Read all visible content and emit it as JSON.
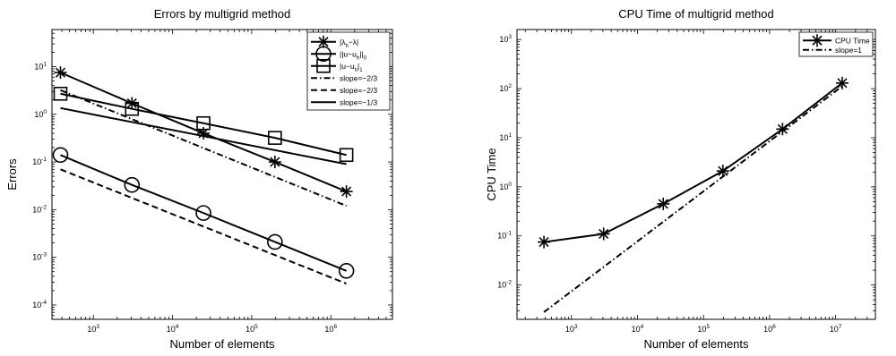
{
  "chart_data": [
    {
      "type": "line",
      "title": "Errors by multigrid method",
      "xlabel": "Number of elements",
      "ylabel": "Errors",
      "xscale": "log",
      "yscale": "log",
      "xlim": [
        300,
        6000000
      ],
      "ylim": [
        5e-05,
        60
      ],
      "xticks": [
        1000,
        10000,
        100000,
        1000000
      ],
      "yticks": [
        0.0001,
        0.001,
        0.01,
        0.1,
        1,
        10
      ],
      "grid": false,
      "legend_position": "top-right",
      "x": [
        384,
        3072,
        24576,
        196608,
        1572864
      ],
      "series": [
        {
          "name": "|λh−λ|",
          "style": "solid",
          "marker": "asterisk",
          "values": [
            7.5,
            1.7,
            0.4,
            0.1,
            0.024
          ]
        },
        {
          "name": "||u−uh||0",
          "style": "solid",
          "marker": "circle",
          "values": [
            0.14,
            0.033,
            0.0085,
            0.0021,
            0.00052
          ]
        },
        {
          "name": "|u−uh|1",
          "style": "solid",
          "marker": "square",
          "values": [
            2.7,
            1.3,
            0.65,
            0.32,
            0.14
          ]
        },
        {
          "name": "slope=−2/3",
          "style": "dashdot",
          "marker": "none",
          "x": [
            384,
            1572864
          ],
          "values": [
            3.2,
            0.012
          ]
        },
        {
          "name": "slope=−2/3",
          "style": "dashed",
          "marker": "none",
          "x": [
            384,
            1572864
          ],
          "values": [
            0.07,
            0.00028
          ]
        },
        {
          "name": "slope=−1/3",
          "style": "solid",
          "marker": "none",
          "x": [
            384,
            1572864
          ],
          "values": [
            1.35,
            0.09
          ]
        }
      ]
    },
    {
      "type": "line",
      "title": "CPU Time of multigrid method",
      "xlabel": "Number of elements",
      "ylabel": "CPU Time",
      "xscale": "log",
      "yscale": "log",
      "xlim": [
        150,
        40000000
      ],
      "ylim": [
        0.002,
        1600
      ],
      "xticks": [
        1000,
        10000,
        100000,
        1000000,
        10000000
      ],
      "yticks": [
        0.01,
        0.1,
        1,
        10,
        100,
        1000
      ],
      "grid": false,
      "legend_position": "top-right",
      "x": [
        384,
        3072,
        24576,
        196608,
        1572864,
        12582912
      ],
      "series": [
        {
          "name": "CPU Time",
          "style": "solid",
          "marker": "asterisk",
          "values": [
            0.075,
            0.11,
            0.45,
            2.1,
            15,
            130
          ]
        },
        {
          "name": "slope=1",
          "style": "dashdot",
          "marker": "none",
          "x": [
            384,
            12582912
          ],
          "values": [
            0.0028,
            112
          ]
        }
      ]
    }
  ]
}
